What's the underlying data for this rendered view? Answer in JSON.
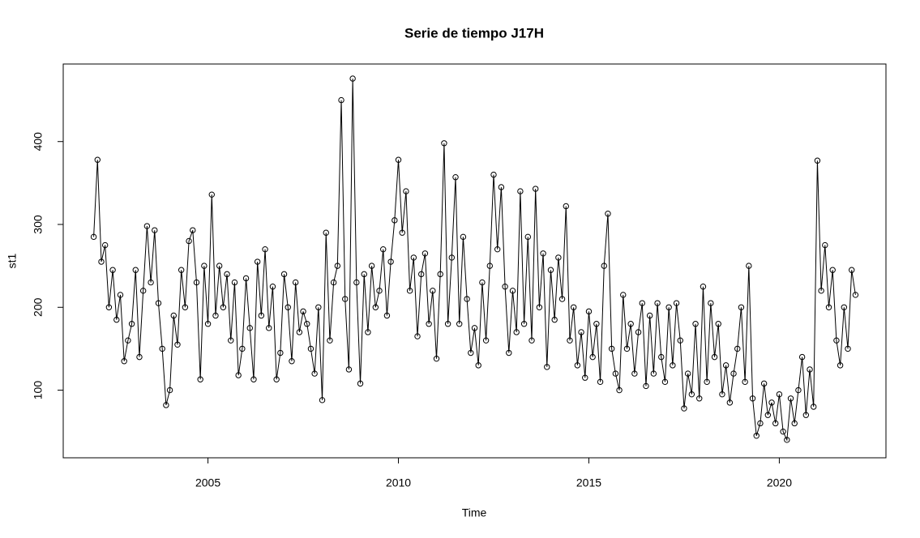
{
  "chart_data": {
    "type": "line",
    "title": "Serie de tiempo J17H",
    "x_label": "Time",
    "y_label": "st1",
    "x": [
      2002.0,
      2002.1,
      2002.2,
      2002.3,
      2002.4,
      2002.5,
      2002.6,
      2002.7,
      2002.8,
      2002.9,
      2003.0,
      2003.1,
      2003.2,
      2003.3,
      2003.4,
      2003.5,
      2003.6,
      2003.7,
      2003.8,
      2003.9,
      2004.0,
      2004.1,
      2004.2,
      2004.3,
      2004.4,
      2004.5,
      2004.6,
      2004.7,
      2004.8,
      2004.9,
      2005.0,
      2005.1,
      2005.2,
      2005.3,
      2005.4,
      2005.5,
      2005.6,
      2005.7,
      2005.8,
      2005.9,
      2006.0,
      2006.1,
      2006.2,
      2006.3,
      2006.4,
      2006.5,
      2006.6,
      2006.7,
      2006.8,
      2006.9,
      2007.0,
      2007.1,
      2007.2,
      2007.3,
      2007.4,
      2007.5,
      2007.6,
      2007.7,
      2007.8,
      2007.9,
      2008.0,
      2008.1,
      2008.2,
      2008.3,
      2008.4,
      2008.5,
      2008.6,
      2008.7,
      2008.8,
      2008.9,
      2009.0,
      2009.1,
      2009.2,
      2009.3,
      2009.4,
      2009.5,
      2009.6,
      2009.7,
      2009.8,
      2009.9,
      2010.0,
      2010.1,
      2010.2,
      2010.3,
      2010.4,
      2010.5,
      2010.6,
      2010.7,
      2010.8,
      2010.9,
      2011.0,
      2011.1,
      2011.2,
      2011.3,
      2011.4,
      2011.5,
      2011.6,
      2011.7,
      2011.8,
      2011.9,
      2012.0,
      2012.1,
      2012.2,
      2012.3,
      2012.4,
      2012.5,
      2012.6,
      2012.7,
      2012.8,
      2012.9,
      2013.0,
      2013.1,
      2013.2,
      2013.3,
      2013.4,
      2013.5,
      2013.6,
      2013.7,
      2013.8,
      2013.9,
      2014.0,
      2014.1,
      2014.2,
      2014.3,
      2014.4,
      2014.5,
      2014.6,
      2014.7,
      2014.8,
      2014.9,
      2015.0,
      2015.1,
      2015.2,
      2015.3,
      2015.4,
      2015.5,
      2015.6,
      2015.7,
      2015.8,
      2015.9,
      2016.0,
      2016.1,
      2016.2,
      2016.3,
      2016.4,
      2016.5,
      2016.6,
      2016.7,
      2016.8,
      2016.9,
      2017.0,
      2017.1,
      2017.2,
      2017.3,
      2017.4,
      2017.5,
      2017.6,
      2017.7,
      2017.8,
      2017.9,
      2018.0,
      2018.1,
      2018.2,
      2018.3,
      2018.4,
      2018.5,
      2018.6,
      2018.7,
      2018.8,
      2018.9,
      2019.0,
      2019.1,
      2019.2,
      2019.3,
      2019.4,
      2019.5,
      2019.6,
      2019.7,
      2019.8,
      2019.9,
      2020.0,
      2020.1,
      2020.2,
      2020.3,
      2020.4,
      2020.5,
      2020.6,
      2020.7,
      2020.8,
      2020.9,
      2021.0,
      2021.1,
      2021.2,
      2021.3,
      2021.4,
      2021.5,
      2021.6,
      2021.7,
      2021.8,
      2021.9,
      2022.0
    ],
    "values": [
      285,
      378,
      255,
      275,
      200,
      245,
      185,
      215,
      135,
      160,
      180,
      245,
      140,
      220,
      298,
      230,
      293,
      205,
      150,
      82,
      100,
      190,
      155,
      245,
      200,
      280,
      293,
      230,
      113,
      250,
      180,
      336,
      190,
      250,
      200,
      240,
      160,
      230,
      118,
      150,
      235,
      175,
      113,
      255,
      190,
      270,
      175,
      225,
      113,
      145,
      240,
      200,
      135,
      230,
      170,
      195,
      180,
      150,
      120,
      200,
      88,
      290,
      160,
      230,
      250,
      450,
      210,
      125,
      476,
      230,
      108,
      240,
      170,
      250,
      200,
      220,
      270,
      190,
      255,
      305,
      378,
      290,
      340,
      220,
      260,
      165,
      240,
      265,
      180,
      220,
      138,
      240,
      398,
      180,
      260,
      357,
      180,
      285,
      210,
      145,
      175,
      130,
      230,
      160,
      250,
      360,
      270,
      345,
      225,
      145,
      220,
      170,
      340,
      180,
      285,
      160,
      343,
      200,
      265,
      128,
      245,
      185,
      260,
      210,
      322,
      160,
      200,
      130,
      170,
      115,
      195,
      140,
      180,
      110,
      250,
      313,
      150,
      120,
      100,
      215,
      150,
      180,
      120,
      170,
      205,
      105,
      190,
      120,
      205,
      140,
      110,
      200,
      130,
      205,
      160,
      78,
      120,
      95,
      180,
      90,
      225,
      110,
      205,
      140,
      180,
      95,
      130,
      85,
      120,
      150,
      200,
      110,
      250,
      90,
      45,
      60,
      108,
      70,
      85,
      60,
      95,
      50,
      40,
      90,
      60,
      100,
      140,
      70,
      125,
      80,
      377,
      220,
      275,
      200,
      245,
      160,
      130,
      200,
      150,
      245,
      215
    ],
    "color": "#000000",
    "xlim": [
      2001.2,
      2022.8
    ],
    "ylim": [
      18.4,
      493.6
    ],
    "xticks": [
      2005,
      2010,
      2015,
      2020
    ],
    "yticks": [
      100,
      200,
      300,
      400
    ]
  }
}
